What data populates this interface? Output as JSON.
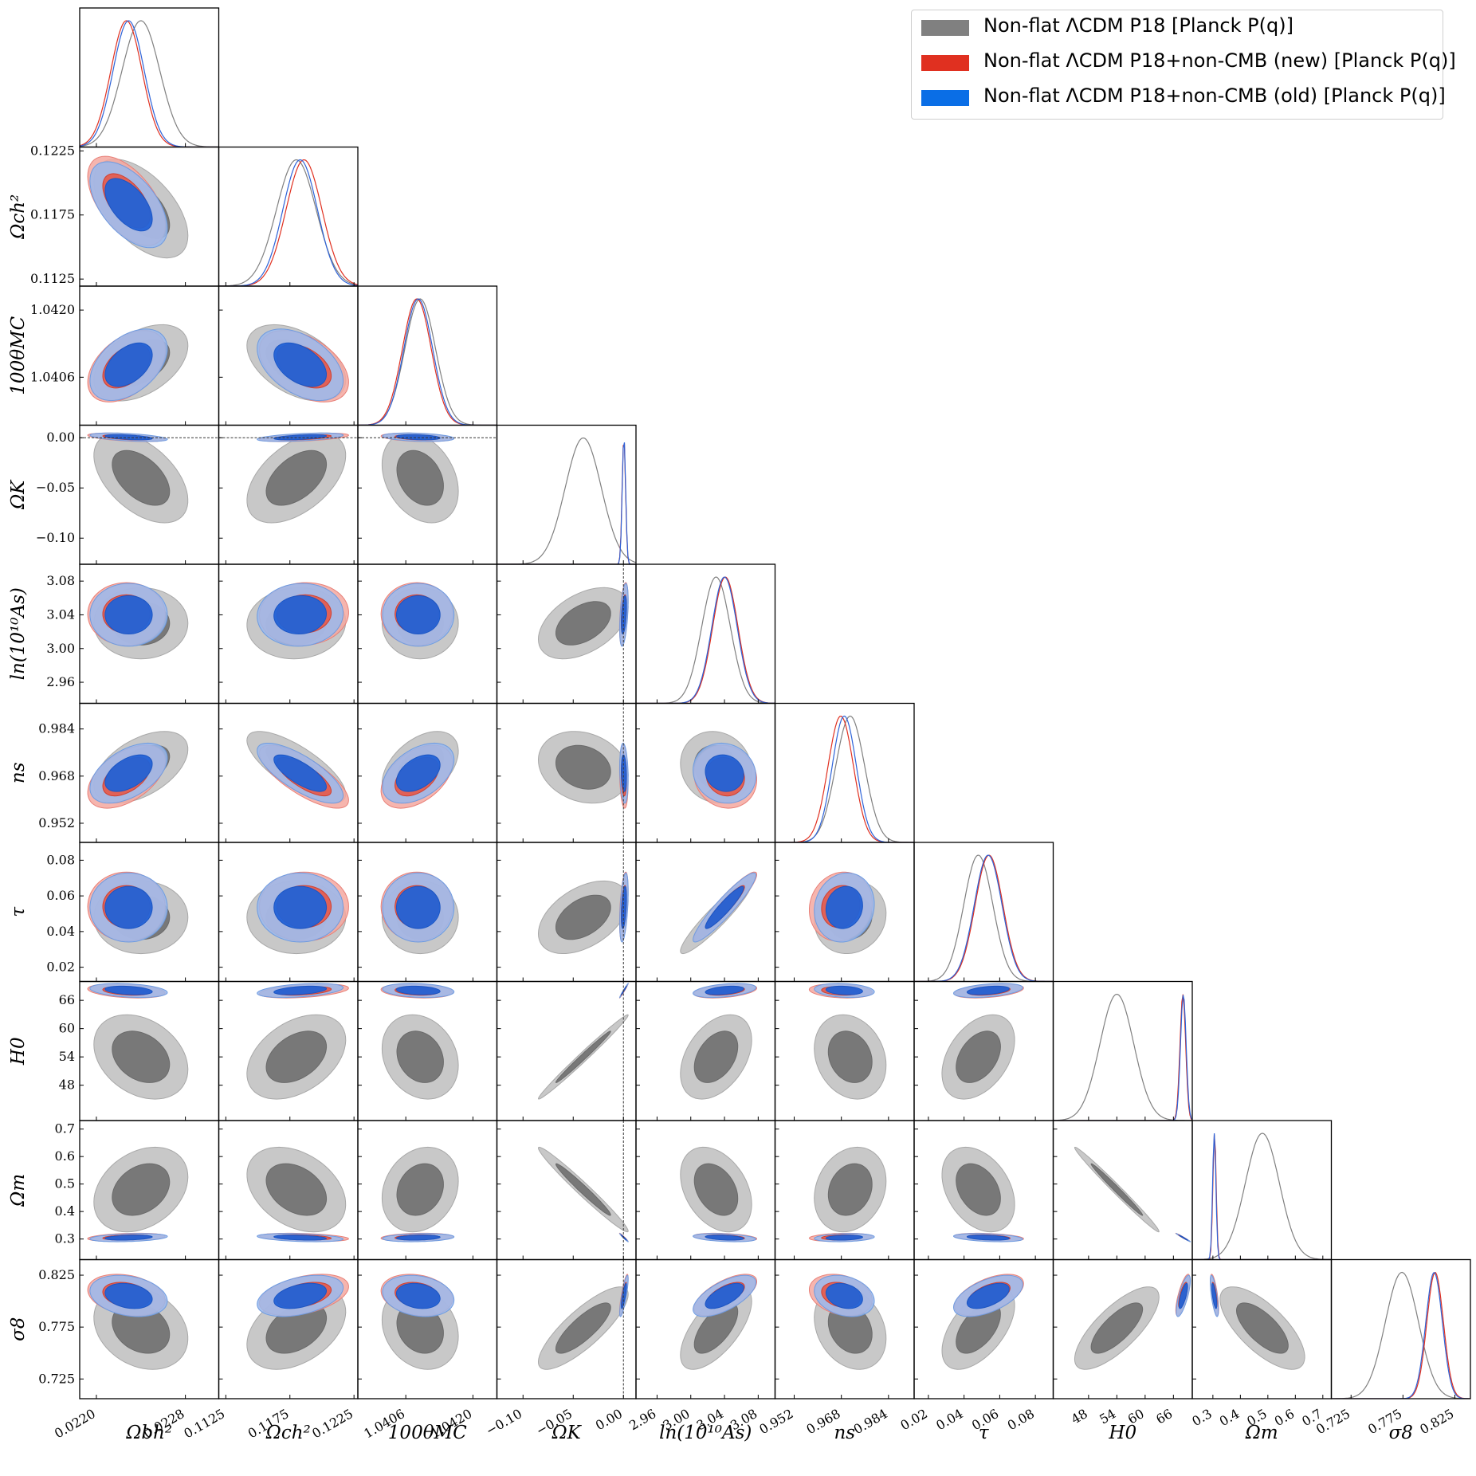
{
  "chart_data": {
    "type": "triangle-corner",
    "parameters": [
      {
        "key": "obh2",
        "label": "Ωbh²",
        "range": [
          0.02185,
          0.0231
        ],
        "ticks": [
          0.022,
          0.0228
        ],
        "tick_labels": [
          "0.0220",
          "0.0228"
        ]
      },
      {
        "key": "och2",
        "label": "Ωch²",
        "range": [
          0.11195,
          0.1228
        ],
        "ticks": [
          0.1125,
          0.1175,
          0.1225
        ],
        "tick_labels": [
          "0.1125",
          "0.1175",
          "0.1225"
        ]
      },
      {
        "key": "theta",
        "label": "100θMC",
        "range": [
          1.0396,
          1.0425
        ],
        "ticks": [
          1.0406,
          1.042
        ],
        "tick_labels": [
          "1.0406",
          "1.0420"
        ]
      },
      {
        "key": "omk",
        "label": "ΩK",
        "range": [
          -0.126,
          0.0125
        ],
        "ticks": [
          -0.1,
          -0.05,
          0.0
        ],
        "tick_labels": [
          "−0.10",
          "−0.05",
          "0.00"
        ]
      },
      {
        "key": "lnAs",
        "label": "ln(10¹⁰As)",
        "range": [
          2.935,
          3.1
        ],
        "ticks": [
          2.96,
          3.0,
          3.04,
          3.08
        ],
        "tick_labels": [
          "2.96",
          "3.00",
          "3.04",
          "3.08"
        ]
      },
      {
        "key": "ns",
        "label": "ns",
        "range": [
          0.9455,
          0.9927
        ],
        "ticks": [
          0.952,
          0.968,
          0.984
        ],
        "tick_labels": [
          "0.952",
          "0.968",
          "0.984"
        ]
      },
      {
        "key": "tau",
        "label": "τ",
        "range": [
          0.012,
          0.09
        ],
        "ticks": [
          0.02,
          0.04,
          0.06,
          0.08
        ],
        "tick_labels": [
          "0.02",
          "0.04",
          "0.06",
          "0.08"
        ]
      },
      {
        "key": "h0",
        "label": "H0",
        "range": [
          40.5,
          70.0
        ],
        "ticks": [
          48,
          54,
          60,
          66
        ],
        "tick_labels": [
          "48",
          "54",
          "60",
          "66"
        ]
      },
      {
        "key": "om",
        "label": "Ωm",
        "range": [
          0.225,
          0.731
        ],
        "ticks": [
          0.3,
          0.4,
          0.5,
          0.6,
          0.7
        ],
        "tick_labels": [
          "0.3",
          "0.4",
          "0.5",
          "0.6",
          "0.7"
        ]
      },
      {
        "key": "s8",
        "label": "σ8",
        "range": [
          0.706,
          0.84
        ],
        "ticks": [
          0.725,
          0.775,
          0.825
        ],
        "tick_labels": [
          "0.725",
          "0.775",
          "0.825"
        ]
      }
    ],
    "series": [
      {
        "name": "Non-flat ΛCDM P18 [Planck P(q)]",
        "color": "#808080",
        "means": [
          0.0224,
          0.118,
          1.0409,
          -0.04,
          3.03,
          0.971,
          0.048,
          54.0,
          0.48,
          0.774
        ],
        "sigmas": [
          0.00017,
          0.00155,
          0.00032,
          0.018,
          0.017,
          0.0049,
          0.0082,
          3.6,
          0.062,
          0.016
        ]
      },
      {
        "name": "Non-flat ΛCDM P18+non-CMB (new) [Planck P(q)]",
        "color": "#e03020",
        "means": [
          0.02227,
          0.1186,
          1.04083,
          0.0004,
          3.041,
          0.9678,
          0.054,
          68.0,
          0.306,
          0.806
        ],
        "sigmas": [
          0.00014,
          0.0014,
          0.0003,
          0.0017,
          0.015,
          0.0043,
          0.0078,
          0.6,
          0.006,
          0.008
        ]
      },
      {
        "name": "Non-flat ΛCDM P18+non-CMB (old) [Planck P(q)]",
        "color": "#0a6ee6",
        "means": [
          0.02229,
          0.1183,
          1.04086,
          0.0005,
          3.04,
          0.969,
          0.0535,
          68.1,
          0.305,
          0.805
        ],
        "sigmas": [
          0.00014,
          0.00135,
          0.0003,
          0.0017,
          0.015,
          0.0041,
          0.0078,
          0.6,
          0.006,
          0.008
        ]
      }
    ],
    "reference_line": {
      "parameter": "ΩK",
      "value": 0
    }
  },
  "legend": {
    "items": [
      {
        "label": "Non-flat ΛCDM P18 [Planck P(q)]",
        "color": "#808080"
      },
      {
        "label": "Non-flat ΛCDM P18+non-CMB (new) [Planck P(q)]",
        "color": "#e03020"
      },
      {
        "label": "Non-flat ΛCDM P18+non-CMB (old) [Planck P(q)]",
        "color": "#0a6ee6"
      }
    ]
  }
}
